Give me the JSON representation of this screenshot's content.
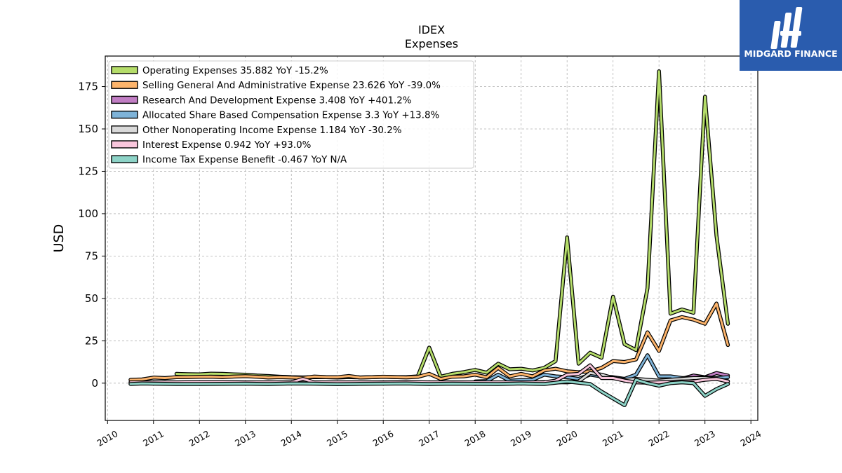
{
  "logo": {
    "text": "MIDGARD FINANCE",
    "color": "#2a5cae"
  },
  "chart_data": {
    "type": "line",
    "title": "IDEX",
    "subtitle": "Expenses",
    "ylabel": "USD",
    "xlabel": "",
    "xlim": [
      2009.95,
      2024.15
    ],
    "ylim": [
      -22,
      193
    ],
    "x_ticks": [
      2010,
      2011,
      2012,
      2013,
      2014,
      2015,
      2016,
      2017,
      2018,
      2019,
      2020,
      2021,
      2022,
      2023,
      2024
    ],
    "y_ticks": [
      0,
      25,
      50,
      75,
      100,
      125,
      150,
      175
    ],
    "grid": true,
    "legend_position": "top-left",
    "series": [
      {
        "name": "Operating Expenses",
        "legend": "Operating Expenses  35.882 YoY -15.2%",
        "color": "#b5dd6a",
        "x": [
          2011.5,
          2011.75,
          2012.0,
          2012.25,
          2012.5,
          2012.75,
          2013.0,
          2013.25,
          2013.5,
          2013.75,
          2014.0,
          2014.25,
          2014.5,
          2014.75,
          2015.0,
          2015.25,
          2015.5,
          2015.75,
          2016.0,
          2016.25,
          2016.5,
          2016.75,
          2017.0,
          2017.25,
          2017.5,
          2017.75,
          2018.0,
          2018.25,
          2018.5,
          2018.75,
          2019.0,
          2019.25,
          2019.5,
          2019.75,
          2020.0,
          2020.25,
          2020.5,
          2020.75,
          2021.0,
          2021.25,
          2021.5,
          2021.75,
          2022.0,
          2022.25,
          2022.5,
          2022.75,
          2023.0,
          2023.25,
          2023.5
        ],
        "y": [
          5.5,
          5.3,
          5.2,
          5.6,
          5.5,
          5.2,
          5.0,
          4.5,
          4.2,
          3.8,
          3.5,
          3.4,
          3.6,
          3.5,
          3.3,
          3.6,
          3.4,
          3.5,
          3.7,
          3.6,
          3.5,
          4.0,
          21.0,
          3.8,
          5.5,
          6.5,
          7.8,
          6.2,
          11.5,
          8.2,
          8.5,
          7.5,
          9.0,
          13.0,
          86.0,
          11.5,
          18.0,
          15.0,
          51.0,
          23.0,
          19.5,
          56.0,
          184.0,
          41.0,
          43.5,
          41.5,
          169.0,
          87.0,
          35.0
        ]
      },
      {
        "name": "Selling General And Administrative Expense",
        "legend": "Selling General And Administrative Expense  23.626 YoY -39.0%",
        "color": "#fdb46b",
        "x": [
          2010.5,
          2010.75,
          2011.0,
          2011.25,
          2011.5,
          2011.75,
          2012.0,
          2012.25,
          2012.5,
          2012.75,
          2013.0,
          2013.25,
          2013.5,
          2013.75,
          2014.0,
          2014.25,
          2014.5,
          2014.75,
          2015.0,
          2015.25,
          2015.5,
          2015.75,
          2016.0,
          2016.25,
          2016.5,
          2016.75,
          2017.0,
          2017.25,
          2017.5,
          2017.75,
          2018.0,
          2018.25,
          2018.5,
          2018.75,
          2019.0,
          2019.25,
          2019.5,
          2019.75,
          2020.0,
          2020.25,
          2020.5,
          2020.75,
          2021.0,
          2021.25,
          2021.5,
          2021.75,
          2022.0,
          2022.25,
          2022.5,
          2022.75,
          2023.0,
          2023.25,
          2023.5
        ],
        "y": [
          2.0,
          2.2,
          3.3,
          3.0,
          3.5,
          3.6,
          3.7,
          3.8,
          3.5,
          3.9,
          4.1,
          3.8,
          3.3,
          3.5,
          3.3,
          3.1,
          3.9,
          3.6,
          3.5,
          4.2,
          3.3,
          3.5,
          3.8,
          3.6,
          3.4,
          3.7,
          5.5,
          2.5,
          3.8,
          4.0,
          5.0,
          3.5,
          9.0,
          4.0,
          5.5,
          4.0,
          7.5,
          8.5,
          7.0,
          6.5,
          7.0,
          9.0,
          13.0,
          12.5,
          14.0,
          30.0,
          19.0,
          37.0,
          39.0,
          37.5,
          35.0,
          47.0,
          22.5
        ]
      },
      {
        "name": "Research And Development Expense",
        "legend": "Research And Development Expense  3.408 YoY +401.2%",
        "color": "#c17ec4",
        "x": [
          2022.0,
          2022.25,
          2022.5,
          2022.75,
          2023.0,
          2023.25,
          2023.5
        ],
        "y": [
          1.5,
          2.0,
          2.5,
          4.5,
          3.5,
          6.0,
          4.5
        ]
      },
      {
        "name": "Allocated Share Based Compensation Expense",
        "legend": "Allocated Share Based Compensation Expense  3.3 YoY +13.8%",
        "color": "#7eb3d8",
        "x": [
          2018.0,
          2018.25,
          2018.5,
          2018.75,
          2019.0,
          2019.25,
          2019.5,
          2019.75,
          2020.0,
          2020.25,
          2020.5,
          2020.75,
          2021.0,
          2021.25,
          2021.5,
          2021.75,
          2022.0,
          2022.25,
          2022.5,
          2022.75,
          2023.0,
          2023.25,
          2023.5
        ],
        "y": [
          1.0,
          1.2,
          5.0,
          1.5,
          1.8,
          2.0,
          5.0,
          4.0,
          3.5,
          2.5,
          5.0,
          4.0,
          3.5,
          2.5,
          5.0,
          16.5,
          4.0,
          4.0,
          3.0,
          3.0,
          3.5,
          3.0,
          3.5
        ]
      },
      {
        "name": "Other Nonoperating Income Expense",
        "legend": "Other Nonoperating Income Expense  1.184 YoY -30.2%",
        "color": "#d9d9d9",
        "x": [
          2011.0,
          2011.5,
          2012.0,
          2012.5,
          2013.0,
          2013.5,
          2014.0,
          2014.5,
          2015.0,
          2015.5,
          2016.0,
          2016.5,
          2017.0,
          2017.5,
          2018.0,
          2018.5,
          2019.0,
          2019.5,
          2020.0,
          2020.25,
          2020.5,
          2020.75,
          2021.0,
          2021.25,
          2021.5,
          2021.75,
          2022.0,
          2022.25,
          2022.5,
          2022.75,
          2023.0,
          2023.25,
          2023.5
        ],
        "y": [
          0.5,
          0.3,
          0.5,
          0.4,
          0.2,
          0.5,
          0.3,
          0.4,
          0.2,
          0.3,
          0.5,
          0.2,
          0.4,
          0.3,
          0.5,
          0.2,
          0.3,
          0.6,
          0.5,
          1.0,
          6.0,
          5.0,
          3.0,
          2.0,
          2.5,
          2.0,
          1.5,
          2.0,
          2.5,
          3.0,
          3.0,
          2.5,
          1.2
        ]
      },
      {
        "name": "Interest Expense",
        "legend": "Interest Expense  0.942 YoY +93.0%",
        "color": "#f9c6dc",
        "x": [
          2010.5,
          2011.0,
          2011.5,
          2012.0,
          2012.5,
          2013.0,
          2013.5,
          2014.0,
          2014.25,
          2014.5,
          2015.0,
          2015.5,
          2016.0,
          2016.5,
          2017.0,
          2017.5,
          2018.0,
          2018.5,
          2019.0,
          2019.5,
          2019.75,
          2020.0,
          2020.25,
          2020.5,
          2020.75,
          2021.0,
          2021.25,
          2021.5,
          2021.75,
          2022.0,
          2022.25,
          2022.5,
          2022.75,
          2023.0,
          2023.25,
          2023.5
        ],
        "y": [
          0.5,
          0.5,
          0.5,
          0.6,
          0.6,
          0.5,
          0.5,
          0.5,
          2.5,
          0.5,
          0.5,
          0.5,
          0.5,
          0.6,
          0.5,
          0.5,
          0.5,
          0.5,
          0.5,
          0.5,
          1.5,
          5.0,
          5.5,
          10.5,
          3.0,
          3.0,
          1.5,
          0.5,
          0.3,
          0.5,
          0.8,
          1.0,
          1.0,
          2.0,
          2.5,
          1.0
        ]
      },
      {
        "name": "Income Tax Expense Benefit",
        "legend": "Income Tax Expense Benefit  -0.467 YoY N/A",
        "color": "#8dd3c7",
        "x": [
          2010.5,
          2010.75,
          2011.0,
          2011.5,
          2012.0,
          2012.5,
          2013.0,
          2013.5,
          2014.0,
          2014.5,
          2015.0,
          2015.5,
          2016.0,
          2016.5,
          2017.0,
          2017.5,
          2018.0,
          2018.5,
          2019.0,
          2019.5,
          2020.0,
          2020.5,
          2020.75,
          2021.0,
          2021.25,
          2021.5,
          2021.75,
          2022.0,
          2022.25,
          2022.5,
          2022.75,
          2023.0,
          2023.25,
          2023.5
        ],
        "y": [
          -0.5,
          -0.2,
          -0.3,
          -0.5,
          -0.5,
          -0.4,
          -0.3,
          -0.5,
          -0.2,
          -0.3,
          -0.6,
          -0.4,
          -0.3,
          -0.2,
          -0.5,
          -0.3,
          -0.4,
          -0.5,
          -0.2,
          -0.5,
          1.0,
          -0.5,
          -5.0,
          -9.0,
          -13.0,
          2.0,
          0.0,
          -1.5,
          0.0,
          0.5,
          0.0,
          -7.5,
          -3.5,
          -0.5
        ]
      }
    ]
  }
}
